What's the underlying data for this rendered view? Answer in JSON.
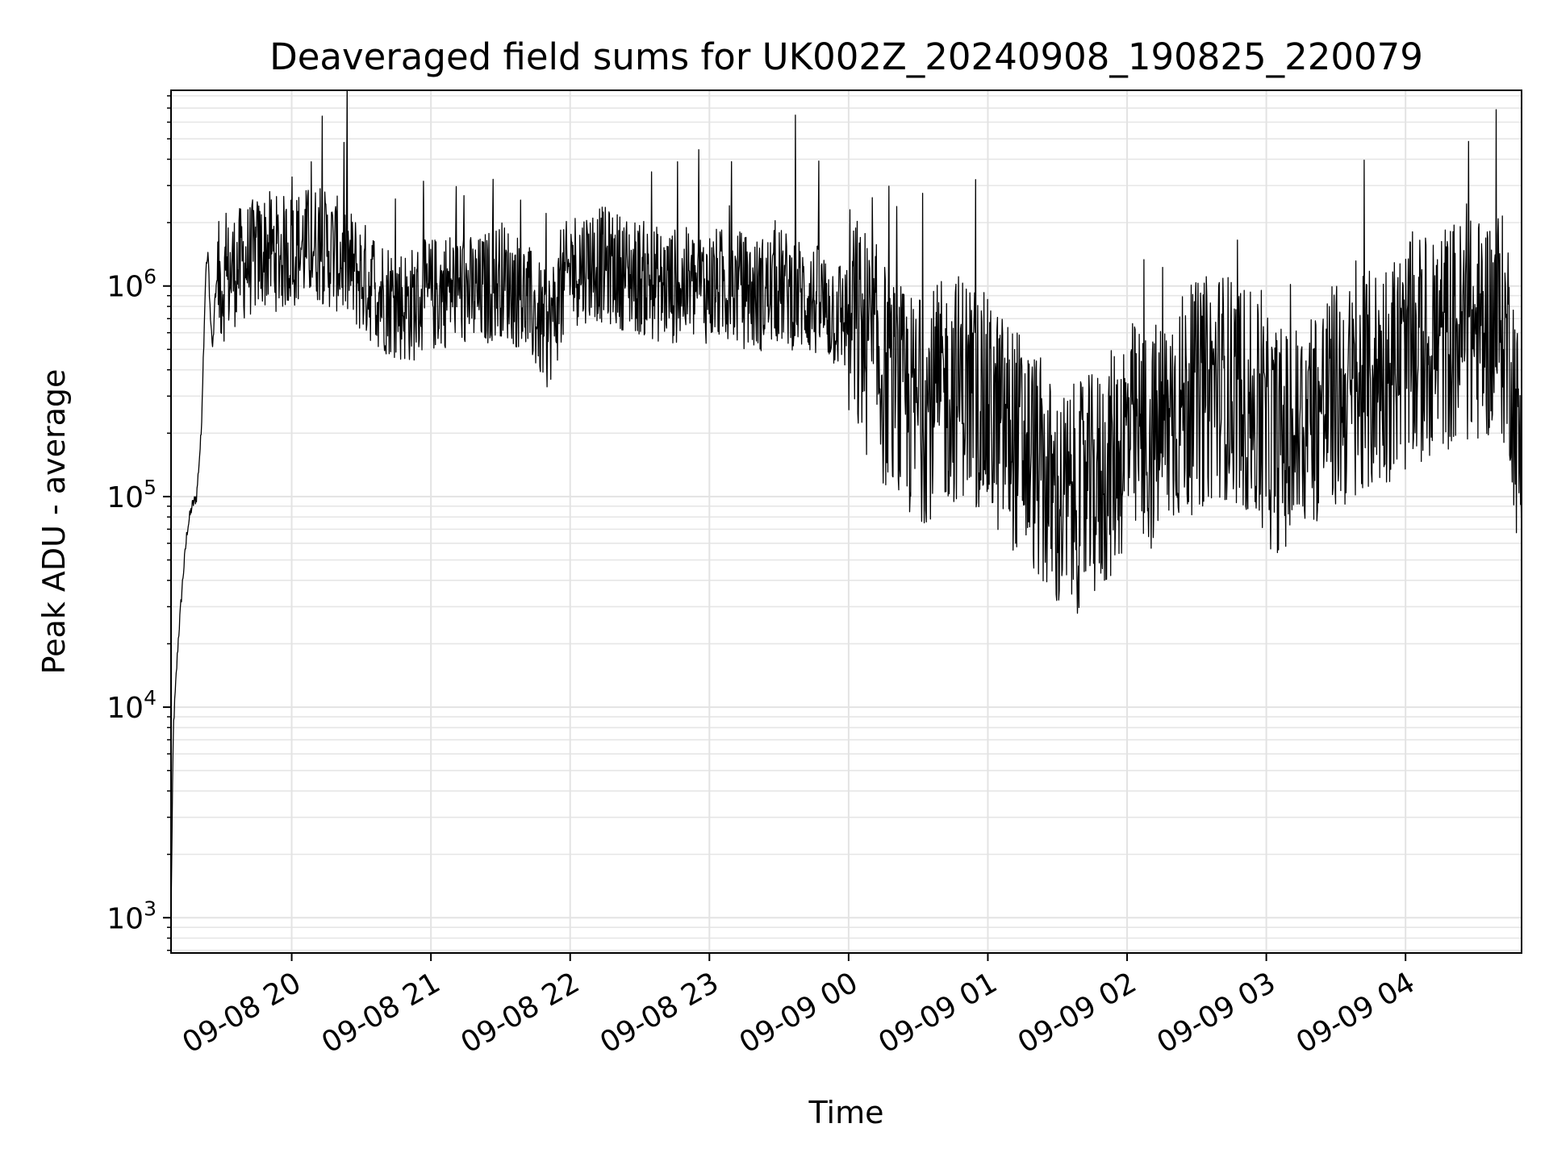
{
  "chart_data": {
    "type": "line",
    "title": "Deaveraged field sums for UK002Z_20240908_190825_220079",
    "xlabel": "Time",
    "ylabel": "Peak ADU - average",
    "yscale": "log",
    "ylim": [
      680,
      8500000
    ],
    "xlim": [
      "2024-09-08 19:08",
      "2024-09-09 04:50"
    ],
    "x_ticks": [
      {
        "value": "2024-09-08 20:00",
        "label": "09-08 20"
      },
      {
        "value": "2024-09-08 21:00",
        "label": "09-08 21"
      },
      {
        "value": "2024-09-08 22:00",
        "label": "09-08 22"
      },
      {
        "value": "2024-09-08 23:00",
        "label": "09-08 23"
      },
      {
        "value": "2024-09-09 00:00",
        "label": "09-09 00"
      },
      {
        "value": "2024-09-09 01:00",
        "label": "09-09 01"
      },
      {
        "value": "2024-09-09 02:00",
        "label": "09-09 02"
      },
      {
        "value": "2024-09-09 03:00",
        "label": "09-09 03"
      },
      {
        "value": "2024-09-09 04:00",
        "label": "09-09 04"
      }
    ],
    "y_ticks": [
      {
        "value": 1000,
        "base": "10",
        "exp": "3"
      },
      {
        "value": 10000,
        "base": "10",
        "exp": "4"
      },
      {
        "value": 100000,
        "base": "10",
        "exp": "5"
      },
      {
        "value": 1000000,
        "base": "10",
        "exp": "6"
      }
    ],
    "grid": true,
    "minor_grid": true,
    "line_color": "#000000",
    "series": [
      {
        "x": [
          "2024-09-08 19:08",
          "2024-09-08 19:09",
          "2024-09-08 19:11",
          "2024-09-08 19:13",
          "2024-09-08 19:15",
          "2024-09-08 19:17",
          "2024-09-08 19:19",
          "2024-09-08 19:21",
          "2024-09-08 19:22",
          "2024-09-08 19:23",
          "2024-09-08 19:24",
          "2024-09-08 19:25",
          "2024-09-08 19:26",
          "2024-09-08 19:27",
          "2024-09-08 19:28",
          "2024-09-08 19:30",
          "2024-09-08 19:35",
          "2024-09-08 19:40",
          "2024-09-08 19:45",
          "2024-09-08 19:50",
          "2024-09-08 19:55",
          "2024-09-08 20:00",
          "2024-09-08 20:10",
          "2024-09-08 20:20",
          "2024-09-08 20:30",
          "2024-09-08 20:40",
          "2024-09-08 20:50",
          "2024-09-08 21:00",
          "2024-09-08 21:10",
          "2024-09-08 21:20",
          "2024-09-08 21:30",
          "2024-09-08 21:40",
          "2024-09-08 21:50",
          "2024-09-08 22:00",
          "2024-09-08 22:10",
          "2024-09-08 22:20",
          "2024-09-08 22:30",
          "2024-09-08 22:40",
          "2024-09-08 22:50",
          "2024-09-08 23:00",
          "2024-09-08 23:10",
          "2024-09-08 23:20",
          "2024-09-08 23:30",
          "2024-09-08 23:40",
          "2024-09-08 23:50",
          "2024-09-09 00:00",
          "2024-09-09 00:10",
          "2024-09-09 00:20",
          "2024-09-09 00:30",
          "2024-09-09 00:40",
          "2024-09-09 00:50",
          "2024-09-09 01:00",
          "2024-09-09 01:10",
          "2024-09-09 01:20",
          "2024-09-09 01:30",
          "2024-09-09 01:40",
          "2024-09-09 01:50",
          "2024-09-09 02:00",
          "2024-09-09 02:10",
          "2024-09-09 02:20",
          "2024-09-09 02:30",
          "2024-09-09 02:40",
          "2024-09-09 02:50",
          "2024-09-09 03:00",
          "2024-09-09 03:10",
          "2024-09-09 03:20",
          "2024-09-09 03:30",
          "2024-09-09 03:40",
          "2024-09-09 03:50",
          "2024-09-09 04:00",
          "2024-09-09 04:10",
          "2024-09-09 04:20",
          "2024-09-09 04:30",
          "2024-09-09 04:40",
          "2024-09-09 04:45",
          "2024-09-09 04:50"
        ],
        "y": [
          1000,
          8000,
          20000,
          40000,
          70000,
          90000,
          100000,
          200000,
          500000,
          1200000,
          1400000,
          700000,
          500000,
          900000,
          1100000,
          1000000,
          1200000,
          1300000,
          1400000,
          1500000,
          1400000,
          1500000,
          1600000,
          1400000,
          1100000,
          900000,
          800000,
          900000,
          1000000,
          900000,
          1100000,
          900000,
          600000,
          1200000,
          1300000,
          1200000,
          1100000,
          1000000,
          1000000,
          1000000,
          1000000,
          900000,
          1000000,
          900000,
          800000,
          700000,
          500000,
          300000,
          250000,
          300000,
          350000,
          250000,
          200000,
          150000,
          90000,
          100000,
          120000,
          200000,
          180000,
          250000,
          300000,
          350000,
          300000,
          200000,
          180000,
          250000,
          300000,
          300000,
          400000,
          450000,
          500000,
          600000,
          600000,
          700000,
          500000,
          120000
        ]
      }
    ]
  }
}
